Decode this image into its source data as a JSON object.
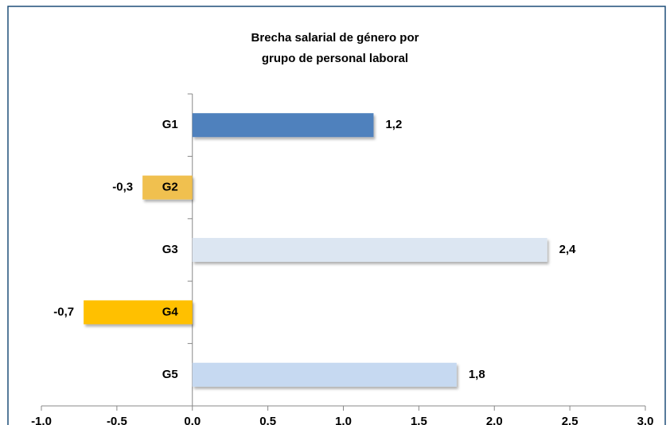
{
  "chart_data": {
    "type": "bar",
    "orientation": "horizontal",
    "title": [
      "Brecha salarial de género por",
      "grupo de personal laboral"
    ],
    "categories": [
      "G1",
      "G2",
      "G3",
      "G4",
      "G5"
    ],
    "values": [
      1.2,
      -0.33,
      2.35,
      -0.72,
      1.75
    ],
    "value_labels": [
      "1,2",
      "-0,3",
      "2,4",
      "-0,7",
      "1,8"
    ],
    "colors": [
      "#4f81bd",
      "#f0c050",
      "#dce6f2",
      "#ffc000",
      "#c6d9f1"
    ],
    "xlim": [
      -1,
      3
    ],
    "xticks": [
      {
        "value": -1,
        "label": "-1,0"
      },
      {
        "value": -0.5,
        "label": "-0,5"
      },
      {
        "value": 0,
        "label": "0,0"
      },
      {
        "value": 0.5,
        "label": "0,5"
      },
      {
        "value": 1,
        "label": "1,0"
      },
      {
        "value": 1.5,
        "label": "1,5"
      },
      {
        "value": 2,
        "label": "2,0"
      },
      {
        "value": 2.5,
        "label": "2,5"
      },
      {
        "value": 3,
        "label": "3,0"
      }
    ]
  }
}
